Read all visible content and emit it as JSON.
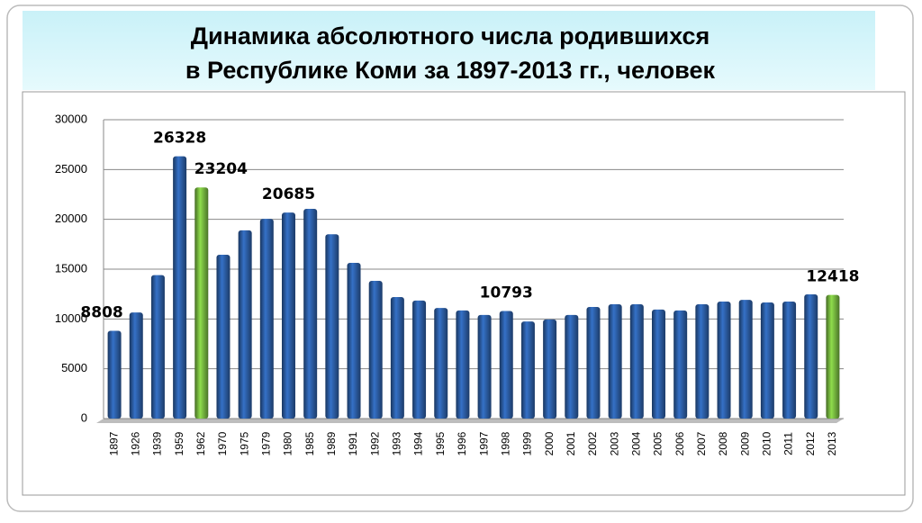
{
  "chart_data": {
    "type": "bar",
    "title": [
      "Динамика абсолютного числа родившихся",
      "в Республике Коми за 1897-2013 гг., человек"
    ],
    "categories": [
      "1897",
      "1926",
      "1939",
      "1959",
      "1962",
      "1970",
      "1975",
      "1979",
      "1980",
      "1985",
      "1989",
      "1991",
      "1992",
      "1993",
      "1994",
      "1995",
      "1996",
      "1997",
      "1998",
      "1999",
      "2000",
      "2001",
      "2002",
      "2003",
      "2004",
      "2005",
      "2006",
      "2007",
      "2008",
      "2009",
      "2010",
      "2011",
      "2012",
      "2013"
    ],
    "values": [
      8808,
      10650,
      14400,
      26328,
      23204,
      16450,
      18900,
      20050,
      20685,
      21050,
      18500,
      15630,
      13830,
      12200,
      11850,
      11100,
      10850,
      10400,
      10793,
      9750,
      9950,
      10400,
      11200,
      11480,
      11480,
      10950,
      10850,
      11480,
      11750,
      11920,
      11660,
      11750,
      12470,
      12418
    ],
    "value_labels": [
      "8808",
      null,
      null,
      "26328",
      "23204",
      null,
      null,
      null,
      "20685",
      null,
      null,
      null,
      null,
      null,
      null,
      null,
      null,
      null,
      "10793",
      null,
      null,
      null,
      null,
      null,
      null,
      null,
      null,
      null,
      null,
      null,
      null,
      null,
      null,
      "12418"
    ],
    "colors": [
      "#2e62ad",
      "#2e62ad",
      "#2e62ad",
      "#2e62ad",
      "#7cc142",
      "#2e62ad",
      "#2e62ad",
      "#2e62ad",
      "#2e62ad",
      "#2e62ad",
      "#2e62ad",
      "#2e62ad",
      "#2e62ad",
      "#2e62ad",
      "#2e62ad",
      "#2e62ad",
      "#2e62ad",
      "#2e62ad",
      "#2e62ad",
      "#2e62ad",
      "#2e62ad",
      "#2e62ad",
      "#2e62ad",
      "#2e62ad",
      "#2e62ad",
      "#2e62ad",
      "#2e62ad",
      "#2e62ad",
      "#2e62ad",
      "#2e62ad",
      "#2e62ad",
      "#2e62ad",
      "#2e62ad",
      "#7cc142"
    ],
    "ylim": [
      0,
      30000
    ],
    "yticks": [
      0,
      5000,
      10000,
      15000,
      20000,
      25000,
      30000
    ],
    "grid": true
  }
}
